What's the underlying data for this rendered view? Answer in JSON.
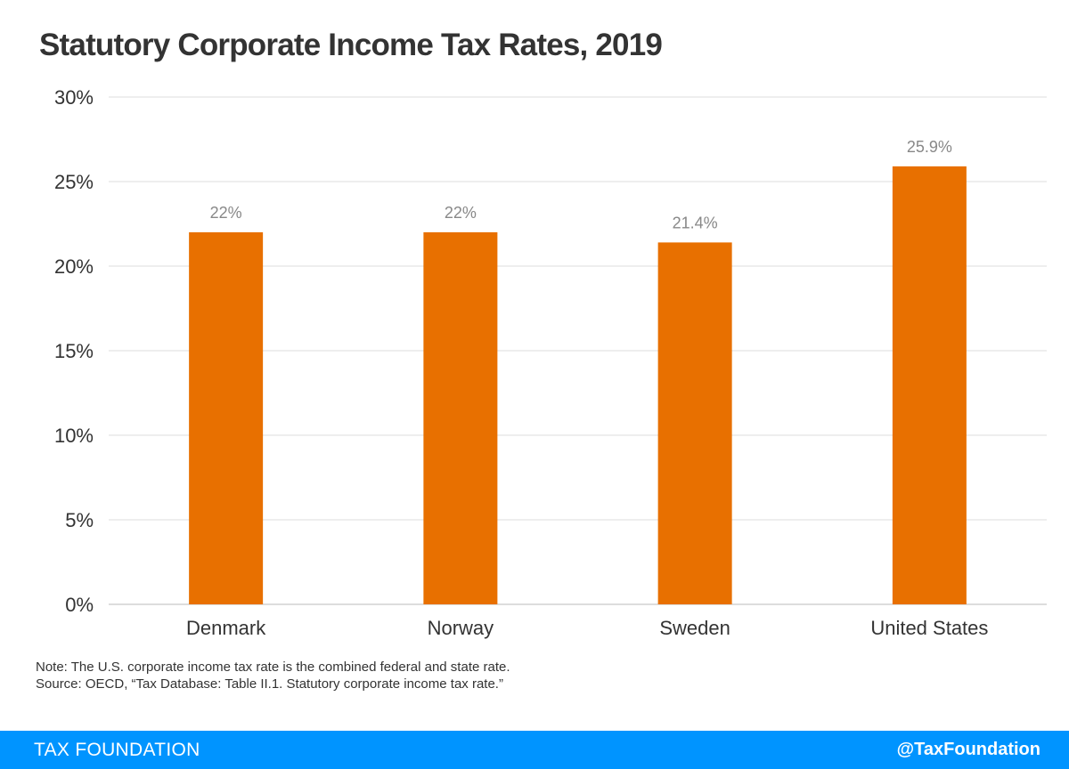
{
  "title": "Statutory Corporate Income Tax Rates, 2019",
  "notes": {
    "note": "Note: The U.S. corporate income tax rate is the combined federal and state rate.",
    "source": "Source: OECD, “Tax Database: Table II.1. Statutory corporate income tax rate.”"
  },
  "footer": {
    "brand": "TAX FOUNDATION",
    "handle": "@TaxFoundation"
  },
  "colors": {
    "bar": "#e87000",
    "footer_bg": "#0094ff",
    "gridline": "#dddddd",
    "data_label": "#888888"
  },
  "chart_data": {
    "type": "bar",
    "categories": [
      "Denmark",
      "Norway",
      "Sweden",
      "United States"
    ],
    "values": [
      22,
      22,
      21.4,
      25.9
    ],
    "data_labels": [
      "22%",
      "22%",
      "21.4%",
      "25.9%"
    ],
    "ylim": [
      0,
      30
    ],
    "yticks": [
      0,
      5,
      10,
      15,
      20,
      25,
      30
    ],
    "ytick_labels": [
      "0%",
      "5%",
      "10%",
      "15%",
      "20%",
      "25%",
      "30%"
    ],
    "grid": true
  }
}
